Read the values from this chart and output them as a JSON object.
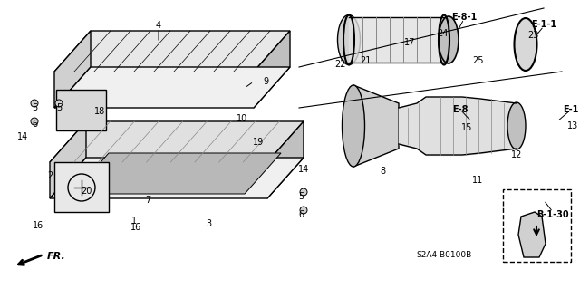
{
  "bg_color": "#ffffff",
  "line_color": "#000000",
  "text_color": "#000000",
  "ref_code": "S2A4-B0100B",
  "parts": [
    [
      "4",
      175,
      291
    ],
    [
      "9",
      293,
      229
    ],
    [
      "10",
      267,
      188
    ],
    [
      "18",
      110,
      196
    ],
    [
      "19",
      285,
      162
    ],
    [
      "1",
      148,
      75
    ],
    [
      "2",
      55,
      125
    ],
    [
      "3",
      230,
      72
    ],
    [
      "5",
      38,
      200
    ],
    [
      "5",
      65,
      200
    ],
    [
      "5",
      332,
      102
    ],
    [
      "6",
      38,
      182
    ],
    [
      "6",
      332,
      82
    ],
    [
      "7",
      163,
      98
    ],
    [
      "8",
      422,
      130
    ],
    [
      "11",
      527,
      120
    ],
    [
      "12",
      570,
      148
    ],
    [
      "13",
      632,
      180
    ],
    [
      "14",
      25,
      168
    ],
    [
      "14",
      335,
      132
    ],
    [
      "15",
      515,
      178
    ],
    [
      "16",
      42,
      70
    ],
    [
      "16",
      150,
      68
    ],
    [
      "17",
      452,
      272
    ],
    [
      "20",
      95,
      108
    ],
    [
      "21",
      403,
      252
    ],
    [
      "22",
      375,
      248
    ],
    [
      "23",
      588,
      280
    ],
    [
      "24",
      488,
      282
    ],
    [
      "25",
      527,
      252
    ]
  ],
  "ref_labels": [
    [
      "E-8-1",
      512,
      300
    ],
    [
      "E-1-1",
      600,
      292
    ],
    [
      "E-8",
      508,
      198
    ],
    [
      "E-1",
      630,
      198
    ],
    [
      "B-1-30",
      610,
      82
    ]
  ]
}
